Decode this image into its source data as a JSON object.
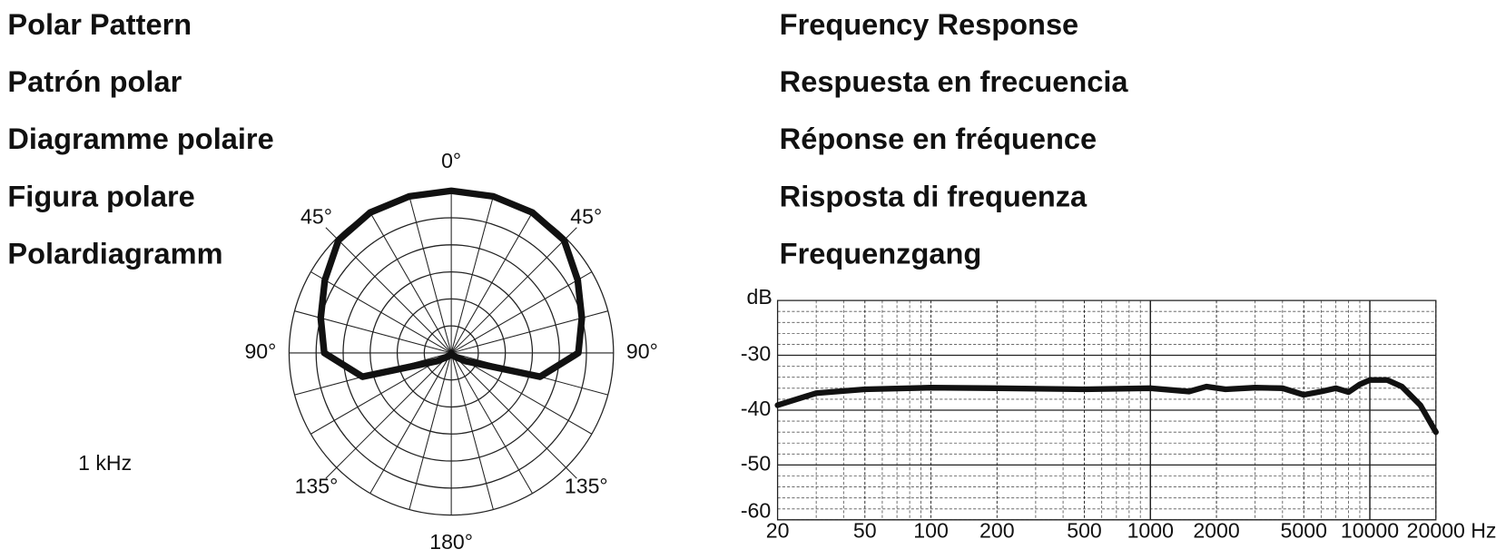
{
  "labels_left": [
    "Polar Pattern",
    "Patrón polar",
    "Diagramme polaire",
    "Figura polare",
    "Polardiagramm"
  ],
  "labels_right": [
    "Frequency Response",
    "Respuesta en frecuencia",
    "Réponse en fréquence",
    "Risposta di frequenza",
    "Frequenzgang"
  ],
  "chart_data": [
    {
      "type": "polar",
      "annotation": "1 kHz",
      "color": "#111111",
      "theta": [
        0,
        15,
        30,
        45,
        60,
        75,
        90,
        105,
        120,
        135,
        150,
        165,
        180,
        195,
        210,
        225,
        240,
        255,
        270,
        285,
        300,
        315,
        330,
        345
      ],
      "r": [
        30,
        30,
        30,
        29.5,
        27,
        25,
        23.5,
        17,
        3,
        1,
        0.5,
        0.3,
        0,
        0.3,
        0.5,
        1,
        3,
        17,
        23.5,
        25,
        27,
        29.5,
        30,
        30
      ],
      "rlim": [
        0,
        30
      ],
      "rticks": [
        5,
        10,
        15,
        20,
        25,
        30
      ],
      "thetaticks": [
        {
          "value": 0,
          "label": "0°"
        },
        {
          "value": 45,
          "label": "45°"
        },
        {
          "value": 90,
          "label": "90°"
        },
        {
          "value": 135,
          "label": "135°"
        },
        {
          "value": 180,
          "label": "180°"
        },
        {
          "value": 225,
          "label": "135°"
        },
        {
          "value": 270,
          "label": "90°"
        },
        {
          "value": 315,
          "label": "45°"
        }
      ]
    },
    {
      "type": "line",
      "xscale": "log",
      "ylabel": "dB",
      "xlabel": "Hz",
      "color": "#111111",
      "x": [
        20,
        30,
        50,
        100,
        200,
        500,
        1000,
        1500,
        1800,
        2200,
        3000,
        4000,
        5000,
        6000,
        7000,
        8000,
        9000,
        10000,
        12000,
        14000,
        17000,
        20000
      ],
      "values": [
        -39.1,
        -36.9,
        -36.2,
        -35.9,
        -36,
        -36.2,
        -36,
        -36.6,
        -35.7,
        -36.2,
        -35.9,
        -36,
        -37.2,
        -36.6,
        -36,
        -36.7,
        -35.3,
        -34.5,
        -34.5,
        -35.7,
        -39.1,
        -44
      ],
      "xlim": [
        20,
        20000
      ],
      "xticks": [
        20,
        50,
        100,
        200,
        500,
        1000,
        2000,
        5000,
        10000,
        20000
      ],
      "ylim": [
        -60,
        -20
      ],
      "yticks": [
        -30,
        -40,
        -50,
        -60
      ],
      "grid": true
    }
  ]
}
